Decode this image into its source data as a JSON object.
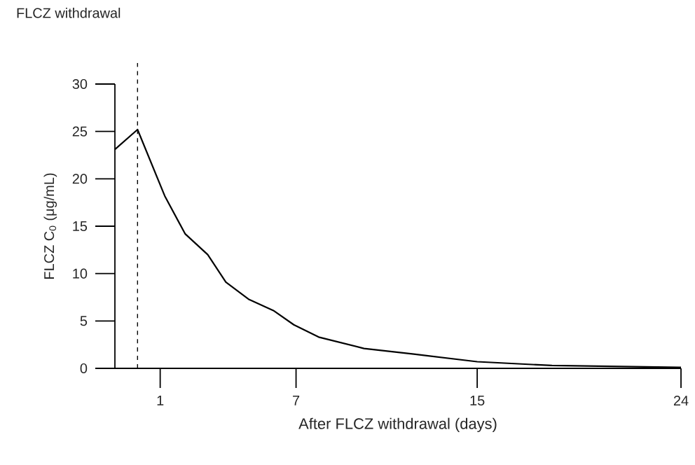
{
  "chart_data": {
    "type": "line",
    "title": "FLCZ withdrawal",
    "xlabel": "After FLCZ withdrawal (days)",
    "ylabel": "FLCZ C$_{0}$ (μg/mL)",
    "x": [
      -1,
      0,
      1.2,
      2.1,
      3.1,
      3.9,
      4.9,
      6,
      6.9,
      8,
      10,
      12.2,
      15,
      18.3,
      24
    ],
    "series": [
      {
        "color": "#000000",
        "values": [
          23.1,
          25.2,
          18.2,
          14.2,
          12,
          9.1,
          7.3,
          6.1,
          4.6,
          3.3,
          2.1,
          1.5,
          0.7,
          0.3,
          0.1
        ]
      }
    ],
    "xlim": [
      -1,
      24
    ],
    "ylim": [
      0,
      30
    ],
    "xticks": [
      1,
      7,
      15,
      24
    ],
    "yticks": [
      0,
      5,
      10,
      15,
      20,
      25,
      30
    ],
    "ref_lines": [
      {
        "axis": "x",
        "value": 0,
        "color": "#000000",
        "line_style": "dashed"
      }
    ],
    "grid": false,
    "marker": "none",
    "line_style": "solid"
  }
}
